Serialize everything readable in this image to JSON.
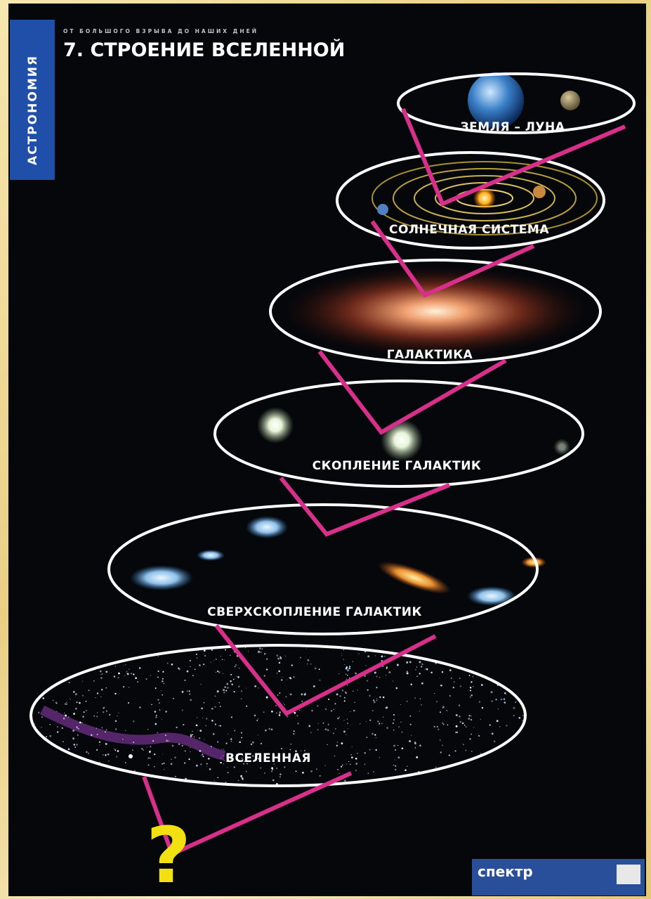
{
  "sidebar": {
    "label": "АСТРОНОМИЯ"
  },
  "header": {
    "subtitle": "ОТ БОЛЬШОГО ВЗРЫВА ДО НАШИХ ДНЕЙ",
    "title": "7. СТРОЕНИЕ ВСЕЛЕННОЙ"
  },
  "levels": [
    {
      "label": "ЗЕМЛЯ – ЛУНА"
    },
    {
      "label": "СОЛНЕЧНАЯ СИСТЕМА"
    },
    {
      "label": "ГАЛАКТИКА"
    },
    {
      "label": "СКОПЛЕНИЕ ГАЛАКТИК"
    },
    {
      "label": "СВЕРХСКОПЛЕНИЕ ГАЛАКТИК"
    },
    {
      "label": "ВСЕЛЕННАЯ"
    }
  ],
  "question": "?",
  "publisher": "спектр"
}
